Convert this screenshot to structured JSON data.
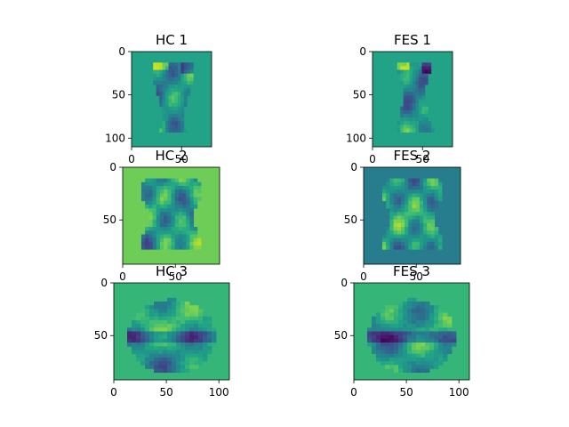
{
  "figure": {
    "background": "#ffffff",
    "colormap": "viridis"
  },
  "chart_data": [
    {
      "type": "heatmap",
      "title": "HC 1",
      "xticks": [
        0,
        50
      ],
      "yticks": [
        0,
        50,
        100
      ],
      "xlim": [
        0,
        80
      ],
      "ylim": [
        0,
        110
      ],
      "background_value": 0.58,
      "blob": "hc1-sagittal"
    },
    {
      "type": "heatmap",
      "title": "FES 1",
      "xticks": [
        0,
        50
      ],
      "yticks": [
        0,
        50,
        100
      ],
      "xlim": [
        0,
        80
      ],
      "ylim": [
        0,
        110
      ],
      "background_value": 0.58,
      "blob": "fes1-sagittal"
    },
    {
      "type": "heatmap",
      "title": "HC 2",
      "xticks": [
        0,
        50
      ],
      "yticks": [
        0,
        50
      ],
      "xlim": [
        0,
        92
      ],
      "ylim": [
        0,
        92
      ],
      "background_value": 0.78,
      "blob": "hc2-coronal"
    },
    {
      "type": "heatmap",
      "title": "FES 2",
      "xticks": [
        0,
        50
      ],
      "yticks": [
        0,
        50
      ],
      "xlim": [
        0,
        92
      ],
      "ylim": [
        0,
        92
      ],
      "background_value": 0.42,
      "blob": "fes2-coronal"
    },
    {
      "type": "heatmap",
      "title": "HC 3",
      "xticks": [
        0,
        50,
        100
      ],
      "yticks": [
        0,
        50
      ],
      "xlim": [
        0,
        110
      ],
      "ylim": [
        0,
        92
      ],
      "background_value": 0.66,
      "blob": "hc3-axial"
    },
    {
      "type": "heatmap",
      "title": "FES 3",
      "xticks": [
        0,
        50,
        100
      ],
      "yticks": [
        0,
        50
      ],
      "xlim": [
        0,
        110
      ],
      "ylim": [
        0,
        92
      ],
      "background_value": 0.66,
      "blob": "fes3-axial"
    }
  ]
}
